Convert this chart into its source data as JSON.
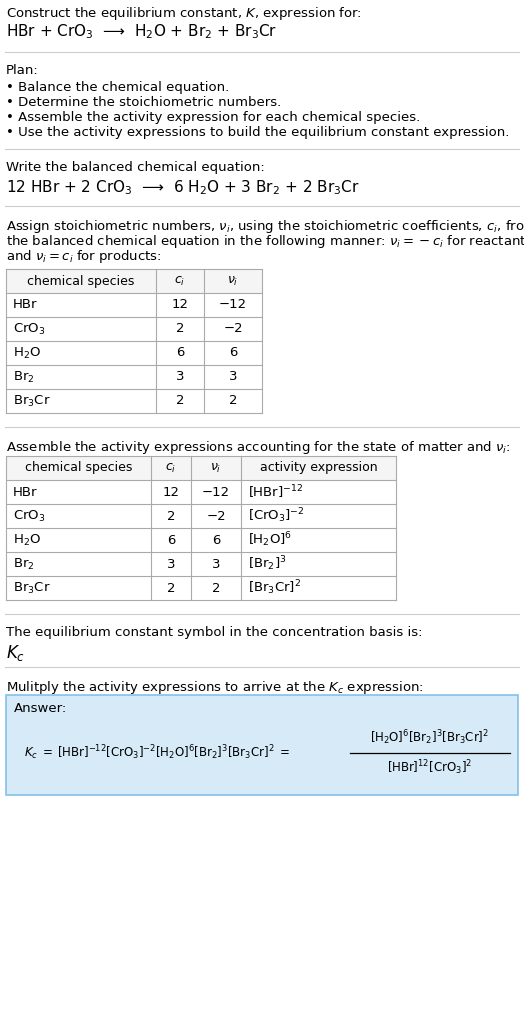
{
  "title_line1": "Construct the equilibrium constant, $K$, expression for:",
  "title_line2": "HBr + CrO$_3$  ⟶  H$_2$O + Br$_2$ + Br$_3$Cr",
  "plan_header": "Plan:",
  "plan_items": [
    "• Balance the chemical equation.",
    "• Determine the stoichiometric numbers.",
    "• Assemble the activity expression for each chemical species.",
    "• Use the activity expressions to build the equilibrium constant expression."
  ],
  "balanced_header": "Write the balanced chemical equation:",
  "balanced_eq": "12 HBr + 2 CrO$_3$  ⟶  6 H$_2$O + 3 Br$_2$ + 2 Br$_3$Cr",
  "stoich_header_lines": [
    "Assign stoichiometric numbers, $\\nu_i$, using the stoichiometric coefficients, $c_i$, from",
    "the balanced chemical equation in the following manner: $\\nu_i = -c_i$ for reactants",
    "and $\\nu_i = c_i$ for products:"
  ],
  "table1_cols": [
    "chemical species",
    "$c_i$",
    "$\\nu_i$"
  ],
  "table1_rows": [
    [
      "HBr",
      "12",
      "−12"
    ],
    [
      "CrO$_3$",
      "2",
      "−2"
    ],
    [
      "H$_2$O",
      "6",
      "6"
    ],
    [
      "Br$_2$",
      "3",
      "3"
    ],
    [
      "Br$_3$Cr",
      "2",
      "2"
    ]
  ],
  "activity_header": "Assemble the activity expressions accounting for the state of matter and $\\nu_i$:",
  "table2_cols": [
    "chemical species",
    "$c_i$",
    "$\\nu_i$",
    "activity expression"
  ],
  "table2_rows": [
    [
      "HBr",
      "12",
      "−12",
      "[HBr]$^{-12}$"
    ],
    [
      "CrO$_3$",
      "2",
      "−2",
      "[CrO$_3$]$^{-2}$"
    ],
    [
      "H$_2$O",
      "6",
      "6",
      "[H$_2$O]$^6$"
    ],
    [
      "Br$_2$",
      "3",
      "3",
      "[Br$_2$]$^3$"
    ],
    [
      "Br$_3$Cr",
      "2",
      "2",
      "[Br$_3$Cr]$^2$"
    ]
  ],
  "kc_header": "The equilibrium constant symbol in the concentration basis is:",
  "kc_symbol": "$K_c$",
  "multiply_header": "Mulitply the activity expressions to arrive at the $K_c$ expression:",
  "answer_label": "Answer:",
  "bg_color": "#ffffff",
  "line_color": "#cccccc",
  "table_border_color": "#aaaaaa",
  "answer_bg": "#d6eaf8",
  "answer_border": "#85c1e9"
}
